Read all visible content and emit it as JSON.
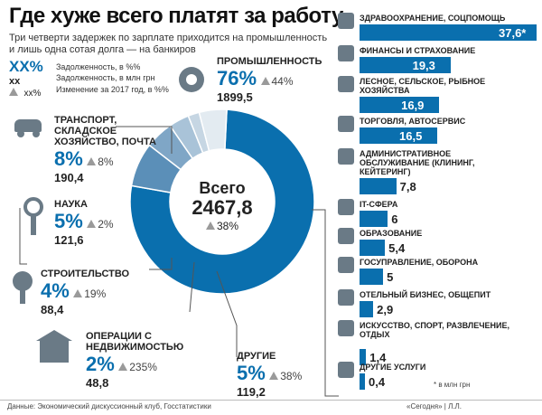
{
  "header": {
    "title": "Где хуже всего платят за работу",
    "subtitle": "Три четверти задержек по зарплате приходится на промышленность и лишь одна сотая долга — на банкиров"
  },
  "legend": {
    "share_sym": "XX%",
    "amount_sym": "хх",
    "change_sym": "хх%",
    "share_txt": "Задолженность, в %%",
    "amount_txt": "Задолженность, в млн грн",
    "change_txt": "Изменение за 2017 год, в %%"
  },
  "center": {
    "label": "Всего",
    "total": "2467,8",
    "change": "38%"
  },
  "colors": {
    "accent": "#0a6fae",
    "mid": "#5b8fb8",
    "light": "#a9c3d8",
    "pale": "#d5e1ea",
    "icon": "#6a7a86"
  },
  "chart_data": [
    {
      "type": "pie",
      "title": "",
      "slices": [
        {
          "label": "ПРОМЫШЛЕННОСТЬ",
          "share": 76,
          "amount": 1899.5,
          "amount_text": "1899,5",
          "share_text": "76%",
          "change_text": "44%",
          "color": "#0a6fae"
        },
        {
          "label": "ТРАНСПОРТ, СКЛАДСКОЕ ХОЗЯЙСТВО, ПОЧТА",
          "share": 8,
          "amount": 190.4,
          "amount_text": "190,4",
          "share_text": "8%",
          "change_text": "8%",
          "color": "#5b8fb8"
        },
        {
          "label": "НАУКА",
          "share": 5,
          "amount": 121.6,
          "amount_text": "121,6",
          "share_text": "5%",
          "change_text": "2%",
          "color": "#7fa6c6"
        },
        {
          "label": "СТРОИТЕЛЬСТВО",
          "share": 4,
          "amount": 88.4,
          "amount_text": "88,4",
          "share_text": "4%",
          "change_text": "19%",
          "color": "#a9c3d8"
        },
        {
          "label": "ОПЕРАЦИИ С НЕДВИЖИМОСТЬЮ",
          "share": 2,
          "amount": 48.8,
          "amount_text": "48,8",
          "share_text": "2%",
          "change_text": "235%",
          "color": "#c6d6e3"
        },
        {
          "label": "ДРУГИЕ",
          "share": 5,
          "amount": 119.2,
          "amount_text": "119,2",
          "share_text": "5%",
          "change_text": "38%",
          "color": "#e3ebf1"
        }
      ]
    },
    {
      "type": "bar",
      "title": "",
      "unit_note": "* в млн грн",
      "categories": [
        "ЗДРАВООХРАНЕНИЕ, СОЦПОМОЩЬ",
        "ФИНАНСЫ И СТРАХОВАНИЕ",
        "ЛЕСНОЕ, СЕЛЬСКОЕ, РЫБНОЕ ХОЗЯЙСТВА",
        "ТОРГОВЛЯ, АВТОСЕРВИС",
        "АДМИНИСТРАТИВНОЕ ОБСЛУЖИВАНИЕ (КЛИНИНГ, КЕЙТЕРИНГ)",
        "IT-СФЕРА",
        "ОБРАЗОВАНИЕ",
        "ГОСУПРАВЛЕНИЕ, ОБОРОНА",
        "ОТЕЛЬНЫЙ БИЗНЕС, ОБЩЕПИТ",
        "ИСКУССТВО, СПОРТ, РАЗВЛЕЧЕНИЕ, ОТДЫХ",
        "ДРУГИЕ УСЛУГИ"
      ],
      "values": [
        37.6,
        19.3,
        16.9,
        16.5,
        7.8,
        6,
        5.4,
        5,
        2.9,
        1.4,
        0.4
      ],
      "value_labels": [
        "37,6*",
        "19,3",
        "16,9",
        "16,5",
        "7,8",
        "6",
        "5,4",
        "5",
        "2,9",
        "1,4",
        "0,4"
      ],
      "xlim": [
        0,
        37.6
      ]
    }
  ],
  "footer": {
    "source": "Данные: Экономический дискуссионный клуб, Госстатистики",
    "credit": "«Сегодня» | Л.Л."
  }
}
